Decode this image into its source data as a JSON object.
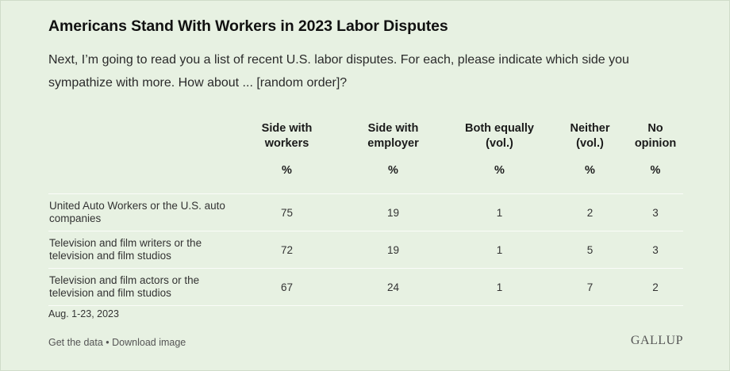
{
  "title": "Americans Stand With Workers in 2023 Labor Disputes",
  "subtitle": "Next, I’m going to read you a list of recent U.S. labor disputes. For each, please indicate which side you sympathize with more. How about ... [random order]?",
  "chart_data": {
    "type": "table",
    "columns": [
      {
        "label": "Side with workers",
        "unit": "%"
      },
      {
        "label": "Side with employer",
        "unit": "%"
      },
      {
        "label": "Both equally (vol.)",
        "unit": "%"
      },
      {
        "label": "Neither (vol.)",
        "unit": "%"
      },
      {
        "label": "No opinion",
        "unit": "%"
      }
    ],
    "rows": [
      {
        "label": "United Auto Workers or the U.S. auto companies",
        "values": [
          75,
          19,
          1,
          2,
          3
        ]
      },
      {
        "label": "Television and film writers or the television and film studios",
        "values": [
          72,
          19,
          1,
          5,
          3
        ]
      },
      {
        "label": "Television and film actors or the television and film studios",
        "values": [
          67,
          24,
          1,
          7,
          2
        ]
      }
    ]
  },
  "dates": "Aug. 1-23, 2023",
  "footer": {
    "get_data": "Get the data",
    "separator": " • ",
    "download": "Download image"
  },
  "logo": "GALLUP"
}
